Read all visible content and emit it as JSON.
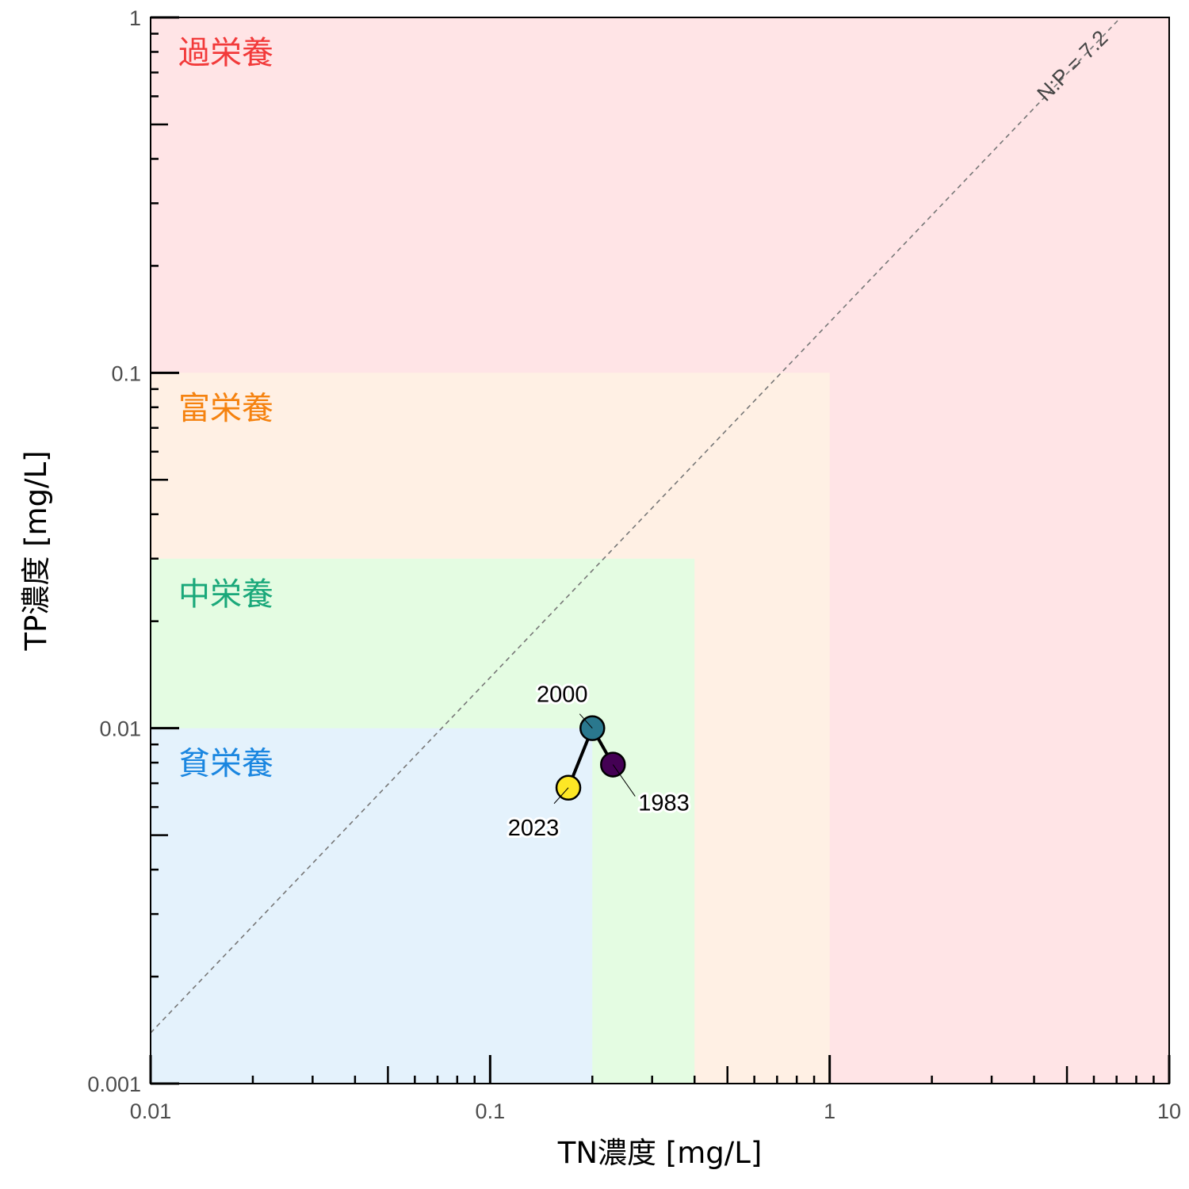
{
  "chart_data": {
    "type": "scatter",
    "title": "",
    "xlabel": "TN濃度 [mg/L]",
    "ylabel": "TP濃度 [mg/L]",
    "xscale": "log",
    "yscale": "log",
    "xlim": [
      0.01,
      10
    ],
    "ylim": [
      0.001,
      1
    ],
    "grid": false,
    "x_ticks": [
      0.01,
      0.1,
      1,
      10
    ],
    "x_tick_labels": [
      "0.01",
      "0.1",
      "1",
      "10"
    ],
    "y_ticks": [
      0.001,
      0.01,
      0.1,
      1
    ],
    "y_tick_labels": [
      "0.001",
      "0.01",
      "0.1",
      "1"
    ],
    "zones": [
      {
        "label": "過栄養",
        "tn_max": 10,
        "tp_max": 1,
        "fill": "#ffe4e6",
        "label_color": "#f23a3a"
      },
      {
        "label": "富栄養",
        "tn_max": 1,
        "tp_max": 0.1,
        "fill": "#fff0e4",
        "label_color": "#f5820f"
      },
      {
        "label": "中栄養",
        "tn_max": 0.4,
        "tp_max": 0.03,
        "fill": "#e4fce2",
        "label_color": "#1aa87a"
      },
      {
        "label": "貧栄養",
        "tn_max": 0.2,
        "tp_max": 0.01,
        "fill": "#e4f2fc",
        "label_color": "#1a86e0"
      }
    ],
    "reference_line": {
      "label": "N:P = 7.2",
      "ratio": 7.2,
      "color": "#777777"
    },
    "points": [
      {
        "label": "1983",
        "tn": 0.23,
        "tp": 0.0079,
        "color": "#440154"
      },
      {
        "label": "2000",
        "tn": 0.2,
        "tp": 0.01,
        "color": "#2a788e"
      },
      {
        "label": "2023",
        "tn": 0.17,
        "tp": 0.0068,
        "color": "#fde725"
      }
    ]
  }
}
